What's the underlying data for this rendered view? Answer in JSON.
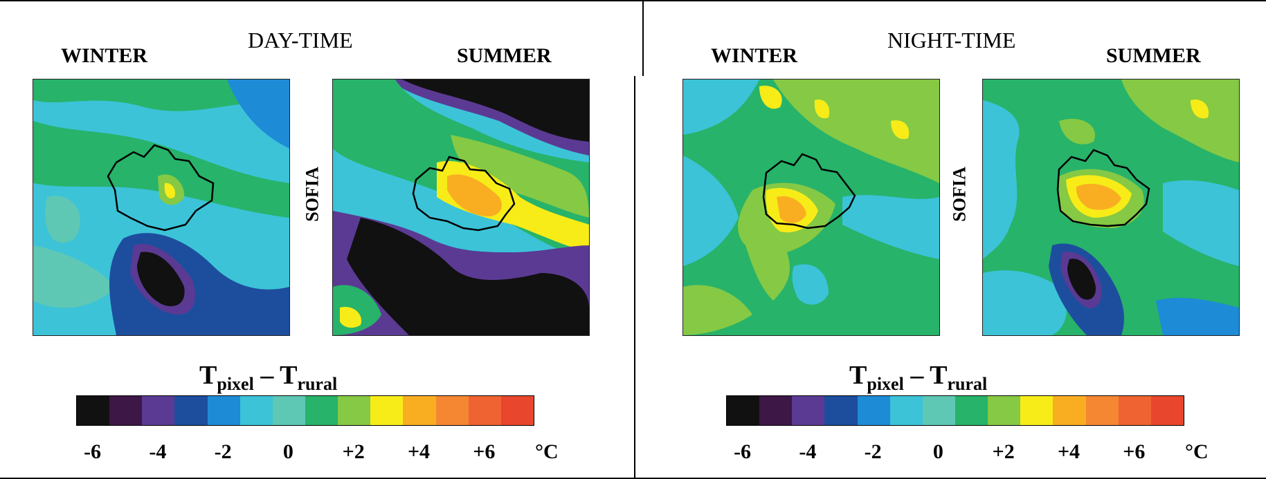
{
  "panels": [
    {
      "period": "DAY-TIME",
      "season_left": "WINTER",
      "season_right": "SUMMER",
      "city": "SOFIA",
      "title_main": "T",
      "title_sub1": "pixel",
      "title_dash": " – ",
      "title_sub2": "rural",
      "unit": "°C",
      "ticks": [
        "-6",
        "-4",
        "-2",
        "0",
        "+2",
        "+4",
        "+6"
      ]
    },
    {
      "period": "NIGHT-TIME",
      "season_left": "WINTER",
      "season_right": "SUMMER",
      "city": "SOFIA",
      "title_main": "T",
      "title_sub1": "pixel",
      "title_dash": " – ",
      "title_sub2": "rural",
      "unit": "°C",
      "ticks": [
        "-6",
        "-4",
        "-2",
        "0",
        "+2",
        "+4",
        "+6"
      ]
    }
  ],
  "colorscale": [
    "#111111",
    "#3d1745",
    "#5b3a93",
    "#1d4e9e",
    "#1e8bd6",
    "#3cc3d8",
    "#5fc8b4",
    "#27b36a",
    "#85c944",
    "#f7ec17",
    "#f9ae22",
    "#f58732",
    "#ef6332",
    "#e8462d"
  ],
  "colorscale_range": [
    -6,
    7
  ]
}
